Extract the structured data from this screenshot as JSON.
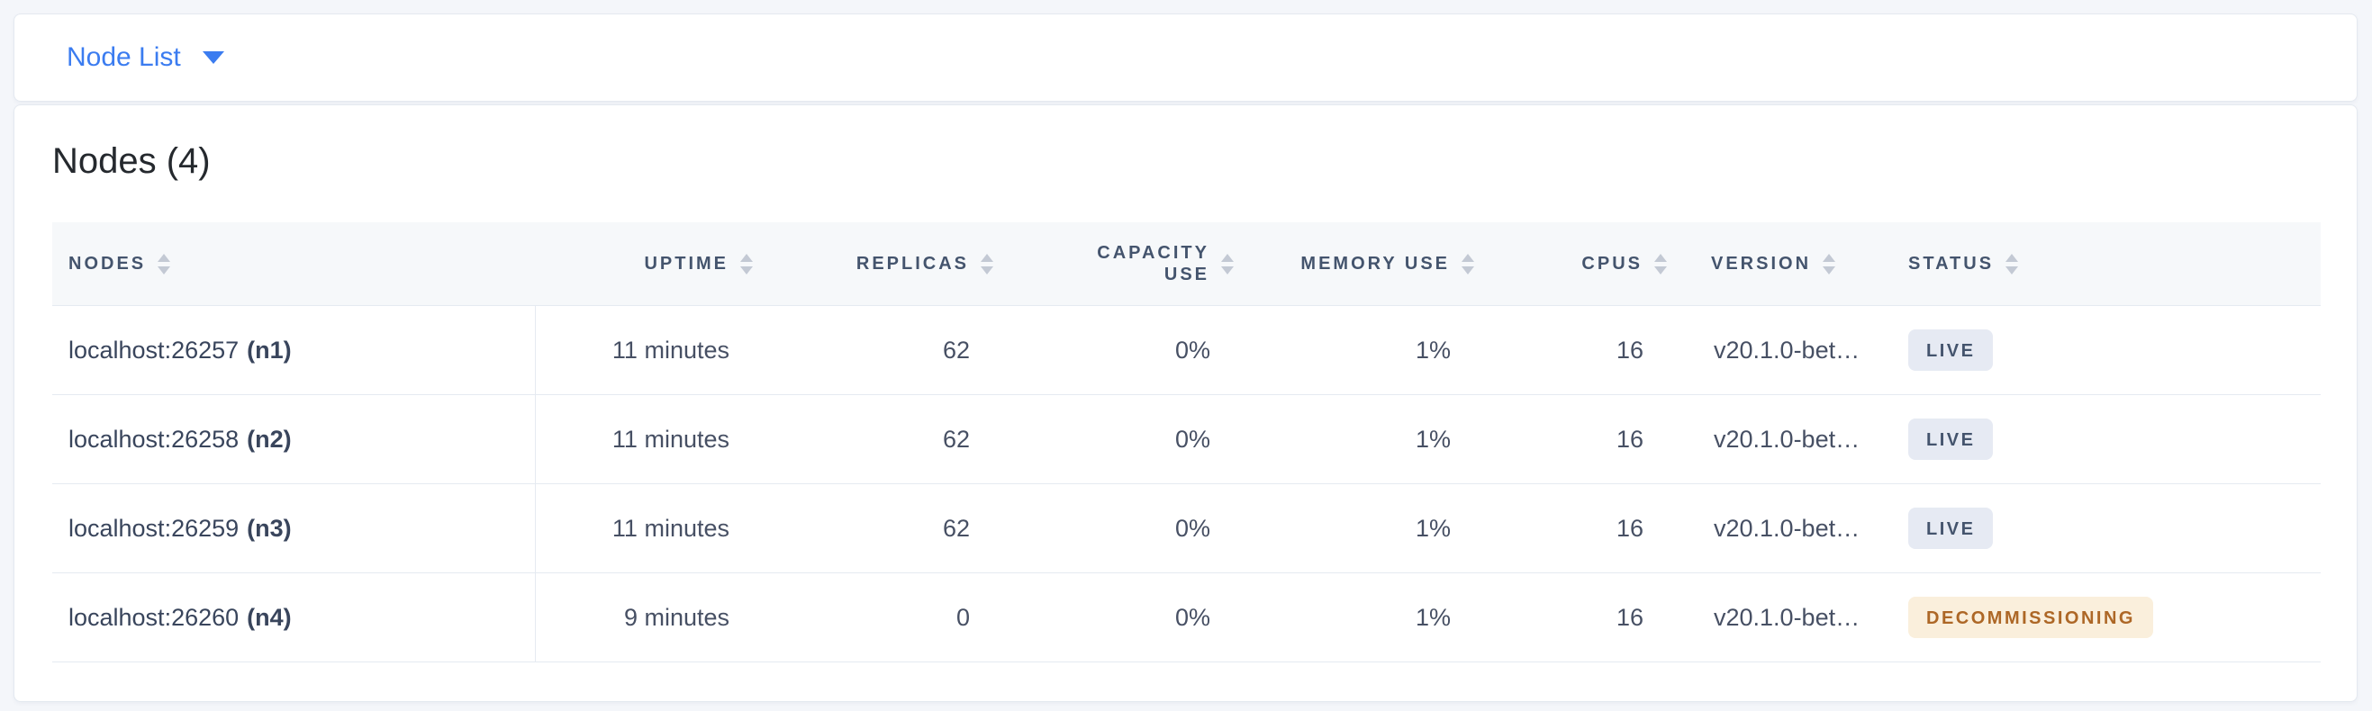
{
  "topbar": {
    "dropdown_label": "Node List"
  },
  "main": {
    "title": "Nodes (4)",
    "table": {
      "headers": [
        "Nodes",
        "Uptime",
        "Replicas",
        "Capacity Use",
        "Memory Use",
        "CPUs",
        "Version",
        "Status"
      ],
      "rows": [
        {
          "address": "localhost:26257",
          "node_id": "(n1)",
          "uptime": "11 minutes",
          "replicas": "62",
          "capacity_use": "0%",
          "memory_use": "1%",
          "cpus": "16",
          "version": "v20.1.0-bet…",
          "status": {
            "label": "LIVE",
            "type": "live"
          }
        },
        {
          "address": "localhost:26258",
          "node_id": "(n2)",
          "uptime": "11 minutes",
          "replicas": "62",
          "capacity_use": "0%",
          "memory_use": "1%",
          "cpus": "16",
          "version": "v20.1.0-bet…",
          "status": {
            "label": "LIVE",
            "type": "live"
          }
        },
        {
          "address": "localhost:26259",
          "node_id": "(n3)",
          "uptime": "11 minutes",
          "replicas": "62",
          "capacity_use": "0%",
          "memory_use": "1%",
          "cpus": "16",
          "version": "v20.1.0-bet…",
          "status": {
            "label": "LIVE",
            "type": "live"
          }
        },
        {
          "address": "localhost:26260",
          "node_id": "(n4)",
          "uptime": "9 minutes",
          "replicas": "0",
          "capacity_use": "0%",
          "memory_use": "1%",
          "cpus": "16",
          "version": "v20.1.0-bet…",
          "status": {
            "label": "DECOMMISSIONING",
            "type": "decommissioning"
          }
        }
      ]
    }
  },
  "colors": {
    "accent_blue": "#3b7cf0",
    "badge_live_bg": "#e6eaf3",
    "badge_live_text": "#44546d",
    "badge_decommissioning_bg": "#faefdc",
    "badge_decommissioning_text": "#ad6726"
  }
}
